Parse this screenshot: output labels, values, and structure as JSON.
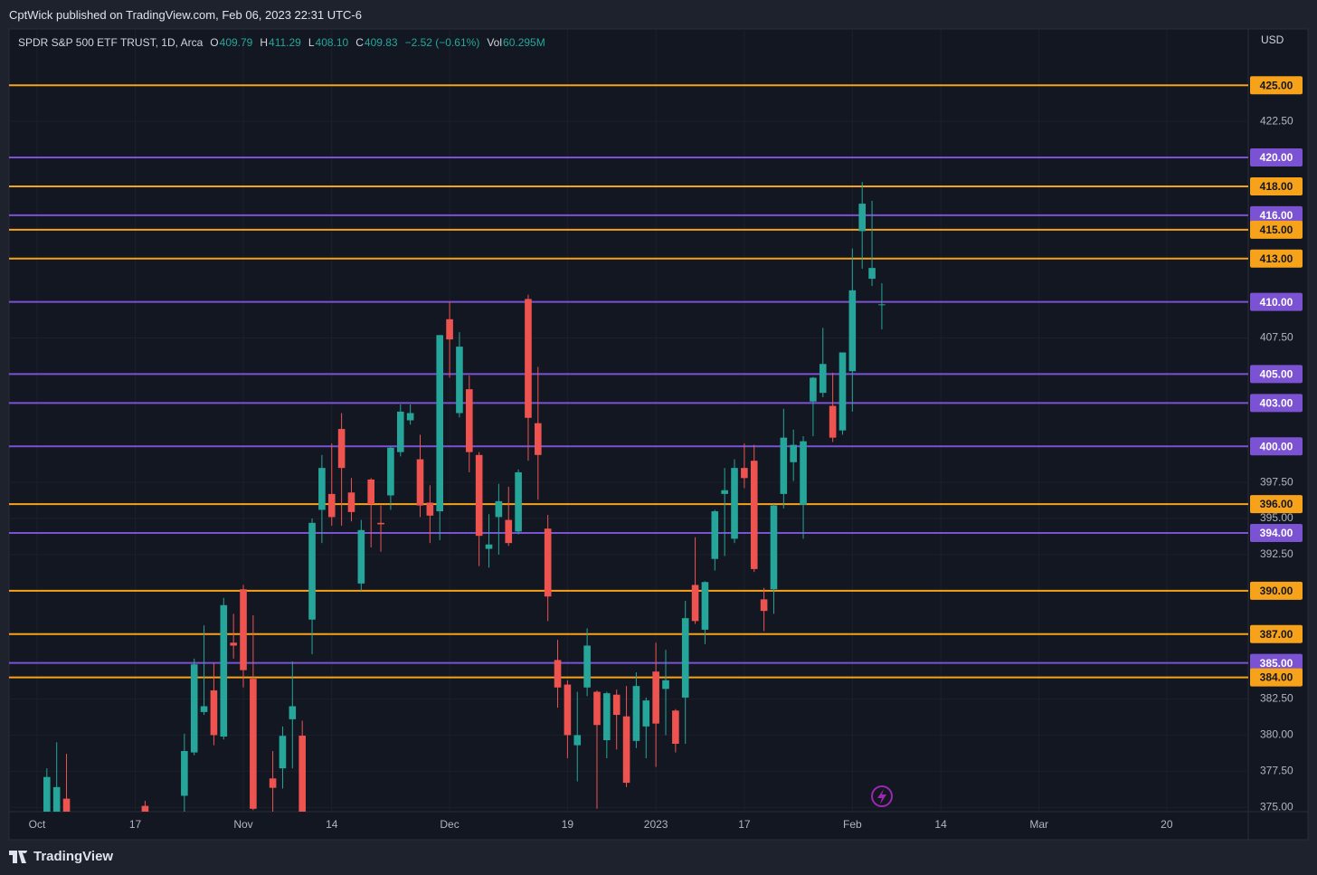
{
  "header": {
    "attribution": "CptWick published on TradingView.com, Feb 06, 2023 22:31 UTC-6",
    "footer": "TradingView"
  },
  "chart_data": {
    "type": "candlestick",
    "title": "SPDR S&P 500 ETF TRUST, 1D, Arca",
    "legend_fields": [
      {
        "label": "O",
        "value": "409.79"
      },
      {
        "label": "H",
        "value": "411.29"
      },
      {
        "label": "L",
        "value": "408.10"
      },
      {
        "label": "C",
        "value": "409.83"
      }
    ],
    "change": "−2.52 (−0.61%)",
    "volume": {
      "label": "Vol",
      "value": "60.295M"
    },
    "currency": "USD",
    "up_color": "#26a69a",
    "down_color": "#ef5350",
    "grid": true,
    "xlim": [
      -2.85,
      123.3
    ],
    "xticks": [
      {
        "value": 0,
        "label": "Oct"
      },
      {
        "value": 10,
        "label": "17"
      },
      {
        "value": 21,
        "label": "Nov"
      },
      {
        "value": 30,
        "label": "14"
      },
      {
        "value": 42,
        "label": "Dec"
      },
      {
        "value": 54,
        "label": "19"
      },
      {
        "value": 63,
        "label": "2023"
      },
      {
        "value": 72,
        "label": "17"
      },
      {
        "value": 83,
        "label": "Feb"
      },
      {
        "value": 92,
        "label": "14"
      },
      {
        "value": 102,
        "label": "Mar"
      },
      {
        "value": 115,
        "label": "20"
      }
    ],
    "ylim": [
      374.7,
      428.9
    ],
    "yticks": [
      {
        "value": 375,
        "label": "375.00"
      },
      {
        "value": 377.5,
        "label": "377.50"
      },
      {
        "value": 380,
        "label": "380.00"
      },
      {
        "value": 382.5,
        "label": "382.50"
      },
      {
        "value": 392.5,
        "label": "392.50"
      },
      {
        "value": 395,
        "label": "395.00"
      },
      {
        "value": 397.5,
        "label": "397.50"
      },
      {
        "value": 407.5,
        "label": "407.50"
      },
      {
        "value": 422.5,
        "label": "422.50"
      }
    ],
    "x": [
      1,
      2,
      3,
      11,
      15,
      16,
      17,
      18,
      19,
      20,
      21,
      22,
      24,
      25,
      26,
      27,
      28,
      29,
      30,
      31,
      32,
      33,
      34,
      35,
      36,
      37,
      38,
      39,
      40,
      41,
      42,
      43,
      44,
      45,
      46,
      47,
      48,
      49,
      50,
      51,
      52,
      53,
      54,
      55,
      56,
      57,
      58,
      59,
      60,
      61,
      62,
      63,
      64,
      65,
      66,
      67,
      68,
      69,
      70,
      71,
      72,
      73,
      74,
      75,
      76,
      77,
      78,
      79,
      80,
      81,
      82,
      83,
      84,
      85,
      86
    ],
    "open": [
      370.6,
      372.4,
      375.6,
      375.1,
      375.8,
      378.8,
      381.6,
      383.1,
      379.9,
      386.4,
      390.1,
      383.9,
      377.0,
      377.7,
      381.1,
      379.96,
      388.0,
      395.6,
      396.7,
      401.2,
      396.8,
      390.5,
      397.7,
      394.7,
      396.6,
      399.6,
      401.8,
      399.1,
      396.1,
      395.5,
      408.8,
      402.3,
      403.95,
      399.4,
      392.9,
      395.1,
      394.9,
      394.1,
      410.2,
      401.6,
      394.3,
      385.2,
      383.5,
      379.3,
      383.3,
      383.0,
      379.65,
      382.8,
      381.3,
      379.6,
      380.6,
      384.4,
      383.2,
      381.7,
      382.6,
      390.4,
      387.3,
      392.2,
      396.7,
      393.6,
      398.5,
      399.0,
      389.4,
      390.1,
      396.7,
      398.9,
      395.95,
      403.1,
      403.7,
      402.8,
      401.1,
      405.2,
      414.9,
      411.6,
      409.79
    ],
    "high": [
      377.7,
      379.5,
      378.7,
      375.45,
      380.1,
      385.3,
      387.6,
      385.0,
      389.5,
      388.4,
      390.4,
      388.3,
      378.9,
      380.6,
      385.1,
      381.0,
      395.0,
      399.4,
      400.2,
      402.3,
      397.8,
      394.9,
      397.8,
      395.9,
      400.0,
      402.9,
      402.9,
      400.8,
      397.3,
      407.7,
      410.0,
      407.9,
      404.9,
      399.6,
      395.3,
      397.4,
      397.2,
      398.4,
      410.5,
      405.5,
      395.25,
      386.6,
      383.8,
      383.0,
      387.4,
      383.1,
      383.0,
      383.15,
      383.4,
      384.35,
      382.6,
      386.4,
      385.9,
      381.8,
      389.3,
      393.7,
      390.65,
      395.6,
      398.5,
      399.1,
      400.2,
      400.1,
      390.2,
      396.0,
      402.6,
      401.15,
      400.7,
      404.8,
      408.2,
      405.1,
      406.5,
      413.7,
      418.3,
      417.0,
      411.29
    ],
    "low": [
      369.9,
      370.4,
      372.6,
      367.5,
      373.1,
      378.6,
      381.4,
      379.3,
      379.7,
      385.3,
      383.3,
      374.8,
      370.6,
      376.3,
      377.7,
      373.3,
      385.6,
      393.3,
      394.5,
      394.5,
      394.8,
      390.0,
      393.0,
      392.7,
      395.6,
      399.3,
      401.5,
      395.1,
      393.3,
      393.5,
      404.75,
      402.0,
      398.2,
      391.7,
      391.6,
      392.5,
      393.1,
      393.9,
      399.0,
      396.3,
      387.9,
      381.9,
      378.4,
      376.8,
      382.7,
      374.9,
      378.4,
      379.0,
      376.4,
      379.1,
      378.4,
      377.8,
      380.0,
      378.8,
      379.4,
      387.7,
      386.3,
      391.4,
      392.4,
      393.3,
      397.1,
      391.3,
      387.2,
      388.4,
      395.7,
      397.6,
      393.6,
      400.7,
      403.4,
      400.3,
      400.8,
      402.4,
      412.3,
      411.1,
      408.1
    ],
    "close": [
      377.1,
      376.4,
      373.2,
      371.1,
      378.9,
      384.9,
      382.0,
      380.0,
      389.0,
      386.2,
      384.5,
      374.9,
      376.35,
      379.95,
      382.0,
      374.13,
      394.7,
      398.5,
      395.1,
      398.5,
      395.45,
      394.2,
      396.0,
      394.6,
      399.9,
      402.4,
      402.3,
      395.9,
      395.2,
      407.7,
      407.4,
      406.9,
      399.6,
      393.8,
      393.2,
      396.2,
      393.3,
      398.2,
      401.97,
      399.4,
      389.6,
      383.3,
      380.0,
      380.0,
      386.2,
      380.7,
      382.9,
      381.4,
      376.7,
      383.4,
      382.4,
      380.8,
      383.8,
      379.4,
      388.1,
      387.9,
      390.6,
      395.5,
      396.96,
      398.5,
      397.8,
      391.5,
      388.6,
      395.9,
      400.6,
      400.1,
      400.35,
      404.75,
      405.7,
      400.6,
      406.5,
      410.8,
      416.8,
      412.35,
      409.83
    ],
    "levels": [
      {
        "value": 425,
        "label": "425.00",
        "color": "#f7a21b",
        "text_color": "#131722"
      },
      {
        "value": 420,
        "label": "420.00",
        "color": "#7b52d1",
        "text_color": "#ffffff"
      },
      {
        "value": 418,
        "label": "418.00",
        "color": "#f7a21b",
        "text_color": "#131722"
      },
      {
        "value": 416,
        "label": "416.00",
        "color": "#7b52d1",
        "text_color": "#ffffff"
      },
      {
        "value": 415,
        "label": "415.00",
        "color": "#f7a21b",
        "text_color": "#131722"
      },
      {
        "value": 413,
        "label": "413.00",
        "color": "#f7a21b",
        "text_color": "#131722"
      },
      {
        "value": 410,
        "label": "410.00",
        "color": "#7b52d1",
        "text_color": "#ffffff"
      },
      {
        "value": 405,
        "label": "405.00",
        "color": "#7b52d1",
        "text_color": "#ffffff"
      },
      {
        "value": 403,
        "label": "403.00",
        "color": "#7b52d1",
        "text_color": "#ffffff"
      },
      {
        "value": 400,
        "label": "400.00",
        "color": "#7b52d1",
        "text_color": "#ffffff"
      },
      {
        "value": 396,
        "label": "396.00",
        "color": "#f7a21b",
        "text_color": "#131722"
      },
      {
        "value": 394,
        "label": "394.00",
        "color": "#7b52d1",
        "text_color": "#ffffff"
      },
      {
        "value": 390,
        "label": "390.00",
        "color": "#f7a21b",
        "text_color": "#131722"
      },
      {
        "value": 387,
        "label": "387.00",
        "color": "#f7a21b",
        "text_color": "#131722"
      },
      {
        "value": 385,
        "label": "385.00",
        "color": "#7b52d1",
        "text_color": "#ffffff"
      },
      {
        "value": 384,
        "label": "384.00",
        "color": "#f7a21b",
        "text_color": "#131722"
      }
    ]
  }
}
